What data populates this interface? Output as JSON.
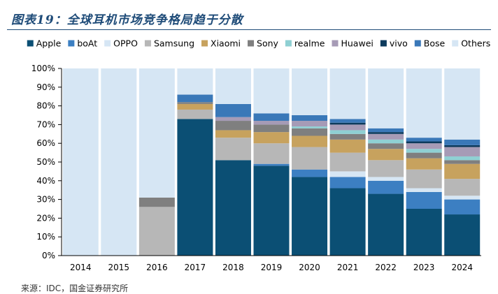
{
  "title": "图表19：全球耳机市场竞争格局趋于分散",
  "source": "来源：IDC，国金证券研究所",
  "chart_data": {
    "type": "bar",
    "stacked": true,
    "categories": [
      "2014",
      "2015",
      "2016",
      "2017",
      "2018",
      "2019",
      "2020",
      "2021",
      "2022",
      "2023",
      "2024"
    ],
    "y_ticks": [
      "0%",
      "10%",
      "20%",
      "30%",
      "40%",
      "50%",
      "60%",
      "70%",
      "80%",
      "90%",
      "100%"
    ],
    "ylim": [
      0,
      100
    ],
    "grid": false,
    "legend_position": "top",
    "series": [
      {
        "name": "Apple",
        "color": "#0b4f74",
        "values": [
          0,
          0,
          0,
          73,
          51,
          48,
          42,
          36,
          33,
          25,
          22
        ]
      },
      {
        "name": "boAt",
        "color": "#3c7fc2",
        "values": [
          0,
          0,
          0,
          0,
          0,
          1,
          4,
          6,
          7,
          9,
          8
        ]
      },
      {
        "name": "OPPO",
        "color": "#d6e6f4",
        "values": [
          0,
          0,
          0,
          0,
          0,
          0,
          0,
          3,
          2,
          2,
          2
        ]
      },
      {
        "name": "Samsung",
        "color": "#b7b7b7",
        "values": [
          0,
          0,
          26,
          5,
          12,
          11,
          12,
          10,
          9,
          10,
          9
        ]
      },
      {
        "name": "Xiaomi",
        "color": "#c7a25e",
        "values": [
          0,
          0,
          0,
          3,
          4,
          6,
          6,
          7,
          6,
          6,
          8
        ]
      },
      {
        "name": "Sony",
        "color": "#7f7f7f",
        "values": [
          0,
          0,
          5,
          1,
          5,
          4,
          4,
          3,
          3,
          3,
          2
        ]
      },
      {
        "name": "realme",
        "color": "#8fd0d3",
        "values": [
          0,
          0,
          0,
          0,
          0,
          0,
          1,
          2,
          2,
          2,
          2
        ]
      },
      {
        "name": "Huawei",
        "color": "#a69bb6",
        "values": [
          0,
          0,
          0,
          0,
          2,
          2,
          3,
          3,
          3,
          3,
          5
        ]
      },
      {
        "name": "vivo",
        "color": "#0c3a5c",
        "values": [
          0,
          0,
          0,
          0,
          0,
          0,
          0,
          1,
          1,
          1,
          1
        ]
      },
      {
        "name": "Bose",
        "color": "#3a78b8",
        "values": [
          0,
          0,
          0,
          4,
          7,
          4,
          3,
          2,
          2,
          2,
          3
        ]
      },
      {
        "name": "Others",
        "color": "#d6e6f4",
        "values": [
          100,
          100,
          69,
          14,
          19,
          24,
          25,
          27,
          32,
          37,
          38
        ]
      }
    ]
  }
}
